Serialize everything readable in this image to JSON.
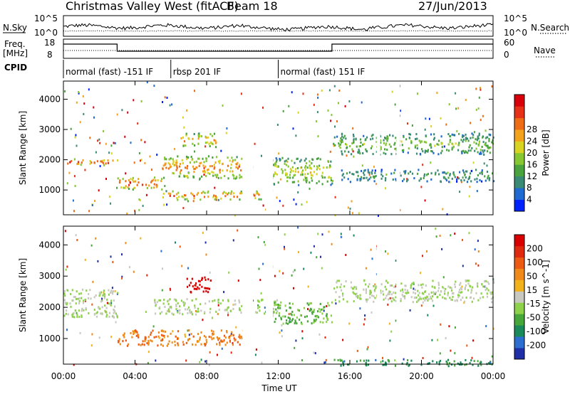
{
  "header": {
    "radar": "Christmas Valley West (fitACF)",
    "beam": "Beam 18",
    "date": "27/Jun/2013"
  },
  "noise_panel": {
    "left_label": "N.Sky",
    "left_ticks": [
      "10^5",
      "10^0"
    ],
    "right_ticks": [
      "10^5",
      "10^0"
    ],
    "right_label": "N.Search",
    "right_legend_style": "dotted"
  },
  "freq_panel": {
    "left_label_1": "Freq.",
    "left_label_2": "[MHz]",
    "left_ticks": [
      "18",
      "8"
    ],
    "right_ticks": [
      "60",
      "0"
    ],
    "right_label": "Nave",
    "right_legend_style": "dotted"
  },
  "cpid": {
    "label": "CPID",
    "segments": [
      {
        "start_hour": 0,
        "end_hour": 6,
        "text": "normal (fast) -151 IF"
      },
      {
        "start_hour": 6,
        "end_hour": 12,
        "text": "rbsp 201 IF"
      },
      {
        "start_hour": 12,
        "end_hour": 24,
        "text": "normal (fast) 151 IF"
      }
    ]
  },
  "xaxis": {
    "label": "Time UT",
    "ticks": [
      "00:00",
      "04:00",
      "08:00",
      "12:00",
      "16:00",
      "20:00",
      "00:00"
    ]
  },
  "chart_data": [
    {
      "type": "heatmap",
      "name": "power",
      "ylabel": "Slant Range [km]",
      "yticks": [
        1000,
        2000,
        3000,
        4000
      ],
      "ylim": [
        180,
        4600
      ],
      "xlim_hours": [
        0,
        24
      ],
      "colorbar": {
        "label": "Power [dB]",
        "ticks": [
          "4",
          "8",
          "12",
          "16",
          "20",
          "24",
          "28"
        ],
        "colors": [
          "#0022ff",
          "#1f6bd1",
          "#3a8a76",
          "#4aa33e",
          "#86c732",
          "#d8d421",
          "#f2a21b",
          "#ee6c14",
          "#e63018",
          "#d8000a"
        ]
      },
      "echo_bands": [
        {
          "t0": 0,
          "t1": 3,
          "r0": 1850,
          "r1": 2050,
          "level": 0.85
        },
        {
          "t0": 3,
          "t1": 5.5,
          "r0": 1050,
          "r1": 1450,
          "level": 0.9
        },
        {
          "t0": 5.5,
          "t1": 10.5,
          "r0": 1400,
          "r1": 2150,
          "level": 0.75
        },
        {
          "t0": 5.5,
          "t1": 11,
          "r0": 700,
          "r1": 1000,
          "level": 0.8
        },
        {
          "t0": 6.5,
          "t1": 8.5,
          "r0": 2450,
          "r1": 2900,
          "level": 0.7
        },
        {
          "t0": 11.5,
          "t1": 15,
          "r0": 1200,
          "r1": 2100,
          "level": 0.55
        },
        {
          "t0": 15,
          "t1": 24,
          "r0": 2200,
          "r1": 2900,
          "level": 0.45
        },
        {
          "t0": 15.5,
          "t1": 24,
          "r0": 1300,
          "r1": 1700,
          "level": 0.35
        }
      ]
    },
    {
      "type": "heatmap",
      "name": "velocity",
      "ylabel": "Slant Range [km]",
      "yticks": [
        1000,
        2000,
        3000,
        4000
      ],
      "ylim": [
        180,
        4600
      ],
      "xlim_hours": [
        0,
        24
      ],
      "colorbar": {
        "label": "Velocity [m s^-1]",
        "ticks": [
          "200",
          "100",
          "50",
          "15",
          "-15",
          "-50",
          "-100",
          "-200"
        ],
        "colors": [
          "#1e2fa8",
          "#2c6fd0",
          "#1b8a5b",
          "#48a73a",
          "#8ed14a",
          "#c8c8c0",
          "#f2b21b",
          "#f08a1a",
          "#ec5a14",
          "#e02a10",
          "#d80000"
        ]
      },
      "echo_bands": [
        {
          "t0": 0,
          "t1": 3,
          "r0": 1700,
          "r1": 2600,
          "level": 0.45
        },
        {
          "t0": 3,
          "t1": 10,
          "r0": 800,
          "r1": 1300,
          "level": 0.7
        },
        {
          "t0": 5,
          "t1": 12,
          "r0": 1800,
          "r1": 2300,
          "level": 0.45
        },
        {
          "t0": 6.8,
          "t1": 8.2,
          "r0": 2500,
          "r1": 3000,
          "level": 1.0
        },
        {
          "t0": 11.5,
          "t1": 15,
          "r0": 1500,
          "r1": 2200,
          "level": 0.35
        },
        {
          "t0": 15,
          "t1": 24,
          "r0": 2200,
          "r1": 2900,
          "level": 0.45
        },
        {
          "t0": 15,
          "t1": 24,
          "r0": 150,
          "r1": 350,
          "level": 0.25
        }
      ]
    }
  ]
}
